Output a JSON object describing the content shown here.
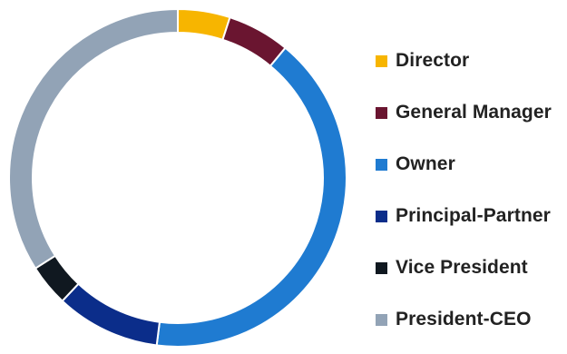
{
  "chart_data": {
    "type": "pie",
    "categories": [
      "Director",
      "General Manager",
      "Owner",
      "Principal-Partner",
      "Vice President",
      "President-CEO"
    ],
    "values": [
      5,
      6,
      41,
      10,
      4,
      34
    ],
    "colors": [
      "#f7b500",
      "#6a1530",
      "#1f7bd1",
      "#0b2d8a",
      "#101820",
      "#92a3b6"
    ],
    "title": "",
    "legend_position": "right"
  }
}
